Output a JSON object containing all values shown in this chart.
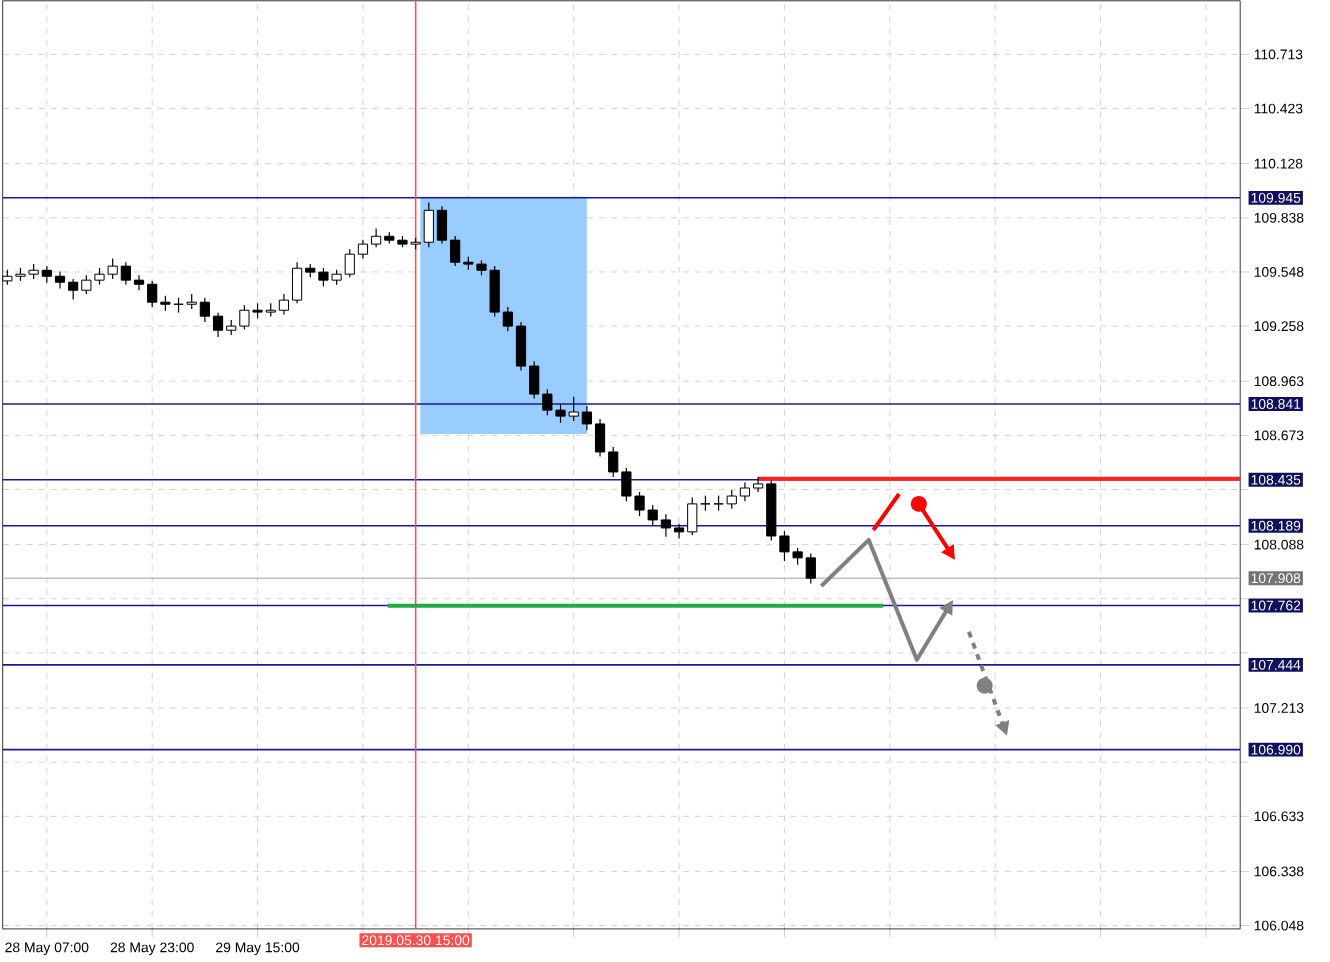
{
  "chart_data": {
    "type": "candlestick",
    "x": [
      "2019-05-28T01:00",
      "2019-05-28T03:00",
      "2019-05-28T05:00",
      "2019-05-28T07:00",
      "2019-05-28T09:00",
      "2019-05-28T11:00",
      "2019-05-28T13:00",
      "2019-05-28T15:00",
      "2019-05-28T17:00",
      "2019-05-28T19:00",
      "2019-05-28T21:00",
      "2019-05-28T23:00",
      "2019-05-29T01:00",
      "2019-05-29T03:00",
      "2019-05-29T05:00",
      "2019-05-29T07:00",
      "2019-05-29T09:00",
      "2019-05-29T11:00",
      "2019-05-29T13:00",
      "2019-05-29T15:00",
      "2019-05-29T17:00",
      "2019-05-29T19:00",
      "2019-05-29T21:00",
      "2019-05-29T23:00",
      "2019-05-30T01:00",
      "2019-05-30T03:00",
      "2019-05-30T05:00",
      "2019-05-30T07:00",
      "2019-05-30T09:00",
      "2019-05-30T11:00",
      "2019-05-30T13:00",
      "2019-05-30T15:00",
      "2019-05-30T17:00",
      "2019-05-30T19:00",
      "2019-05-30T21:00",
      "2019-05-30T23:00",
      "2019-05-31T01:00",
      "2019-05-31T03:00",
      "2019-05-31T05:00",
      "2019-05-31T07:00",
      "2019-05-31T09:00",
      "2019-05-31T11:00",
      "2019-05-31T13:00",
      "2019-05-31T15:00",
      "2019-05-31T17:00",
      "2019-05-31T19:00",
      "2019-05-31T21:00",
      "2019-05-31T23:00",
      "2019-06-01T01:00",
      "2019-06-01T03:00",
      "2019-06-01T05:00",
      "2019-06-01T07:00",
      "2019-06-01T09:00",
      "2019-06-01T11:00",
      "2019-06-01T13:00",
      "2019-06-01T15:00",
      "2019-06-01T17:00",
      "2019-06-01T19:00",
      "2019-06-01T21:00",
      "2019-06-01T23:00",
      "2019-06-02T01:00",
      "2019-06-02T03:00"
    ],
    "ohlc": [
      [
        109.5,
        109.56,
        109.48,
        109.525
      ],
      [
        109.525,
        109.57,
        109.5,
        109.536
      ],
      [
        109.536,
        109.59,
        109.51,
        109.557
      ],
      [
        109.557,
        109.58,
        109.49,
        109.525
      ],
      [
        109.525,
        109.55,
        109.46,
        109.493
      ],
      [
        109.493,
        109.51,
        109.4,
        109.45
      ],
      [
        109.45,
        109.53,
        109.43,
        109.504
      ],
      [
        109.504,
        109.57,
        109.48,
        109.536
      ],
      [
        109.536,
        109.62,
        109.51,
        109.579
      ],
      [
        109.579,
        109.6,
        109.48,
        109.504
      ],
      [
        109.504,
        109.53,
        109.45,
        109.482
      ],
      [
        109.482,
        109.5,
        109.36,
        109.386
      ],
      [
        109.386,
        109.42,
        109.34,
        109.375
      ],
      [
        109.375,
        109.41,
        109.33,
        109.375
      ],
      [
        109.375,
        109.43,
        109.35,
        109.386
      ],
      [
        109.386,
        109.41,
        109.28,
        109.311
      ],
      [
        109.311,
        109.33,
        109.2,
        109.236
      ],
      [
        109.236,
        109.29,
        109.21,
        109.258
      ],
      [
        109.258,
        109.37,
        109.24,
        109.343
      ],
      [
        109.343,
        109.38,
        109.3,
        109.333
      ],
      [
        109.333,
        109.38,
        109.31,
        109.343
      ],
      [
        109.343,
        109.43,
        109.32,
        109.397
      ],
      [
        109.397,
        109.6,
        109.38,
        109.568
      ],
      [
        109.568,
        109.59,
        109.52,
        109.547
      ],
      [
        109.547,
        109.57,
        109.47,
        109.504
      ],
      [
        109.504,
        109.56,
        109.48,
        109.536
      ],
      [
        109.536,
        109.67,
        109.52,
        109.643
      ],
      [
        109.643,
        109.72,
        109.62,
        109.697
      ],
      [
        109.697,
        109.78,
        109.68,
        109.739
      ],
      [
        109.739,
        109.76,
        109.7,
        109.718
      ],
      [
        109.718,
        109.74,
        109.68,
        109.697
      ],
      [
        109.697,
        109.73,
        109.67,
        109.707
      ],
      [
        109.707,
        109.92,
        109.68,
        109.878
      ],
      [
        109.878,
        109.9,
        109.7,
        109.718
      ],
      [
        109.718,
        109.74,
        109.58,
        109.6
      ],
      [
        109.6,
        109.63,
        109.56,
        109.59
      ],
      [
        109.59,
        109.61,
        109.53,
        109.557
      ],
      [
        109.557,
        109.58,
        109.31,
        109.333
      ],
      [
        109.333,
        109.36,
        109.23,
        109.258
      ],
      [
        109.258,
        109.28,
        109.02,
        109.044
      ],
      [
        109.044,
        109.07,
        108.87,
        108.894
      ],
      [
        108.894,
        108.92,
        108.78,
        108.808
      ],
      [
        108.808,
        108.84,
        108.74,
        108.776
      ],
      [
        108.776,
        108.88,
        108.75,
        108.798
      ],
      [
        108.798,
        108.83,
        108.7,
        108.734
      ],
      [
        108.734,
        108.76,
        108.56,
        108.584
      ],
      [
        108.584,
        108.61,
        108.45,
        108.477
      ],
      [
        108.477,
        108.5,
        108.32,
        108.348
      ],
      [
        108.348,
        108.37,
        108.24,
        108.273
      ],
      [
        108.273,
        108.3,
        108.19,
        108.22
      ],
      [
        108.22,
        108.25,
        108.13,
        108.177
      ],
      [
        108.177,
        108.2,
        108.12,
        108.156
      ],
      [
        108.156,
        108.34,
        108.14,
        108.306
      ],
      [
        108.306,
        108.35,
        108.27,
        108.306
      ],
      [
        108.306,
        108.35,
        108.27,
        108.306
      ],
      [
        108.306,
        108.38,
        108.28,
        108.348
      ],
      [
        108.348,
        108.42,
        108.32,
        108.391
      ],
      [
        108.391,
        108.45,
        108.37,
        108.413
      ],
      [
        108.413,
        108.43,
        108.11,
        108.134
      ],
      [
        108.134,
        108.16,
        108.0,
        108.049
      ],
      [
        108.049,
        108.07,
        107.98,
        108.017
      ],
      [
        108.017,
        108.04,
        107.88,
        107.908
      ]
    ],
    "series": [
      {
        "type": "bar",
        "color": "#99ccff",
        "x": [
          "2019-05-31T04:21"
        ],
        "values": [
          1.27
        ],
        "base": [
          108.68
        ]
      },
      {
        "type": "line",
        "color": "#ff2020",
        "x": [
          "2019-06-01T19:00",
          "2019-06-04T20:12"
        ],
        "values": [
          108.44,
          108.44
        ]
      },
      {
        "type": "line",
        "color": "#22aa44",
        "x": [
          "2019-05-30T10:48",
          "2019-06-02T14:00"
        ],
        "values": [
          107.76,
          107.76
        ]
      }
    ],
    "xlim": [
      "2019-05-28T00:18",
      "2019-06-04T20:12"
    ],
    "ylim": [
      106.03,
      111.0
    ],
    "xticks": [
      {
        "value": "2019-05-28T07:00",
        "label": "28 May 07:00"
      },
      {
        "value": "2019-05-28T23:00",
        "label": "28 May 23:00"
      },
      {
        "value": "2019-05-29T15:00",
        "label": "29 May 15:00"
      },
      {
        "value": "2019-05-30T07:00",
        "label": null
      },
      {
        "value": "2019-05-30T23:00",
        "label": null
      },
      {
        "value": "2019-05-31T15:00",
        "label": null
      },
      {
        "value": "2019-06-01T07:00",
        "label": null
      },
      {
        "value": "2019-06-01T23:00",
        "label": null
      },
      {
        "value": "2019-06-02T15:00",
        "label": null
      },
      {
        "value": "2019-06-03T07:00",
        "label": null
      },
      {
        "value": "2019-06-03T23:00",
        "label": null
      },
      {
        "value": "2019-06-04T15:00",
        "label": null
      }
    ],
    "yticks": [
      110.713,
      110.423,
      110.128,
      109.838,
      109.548,
      109.258,
      108.963,
      108.673,
      {
        "value": 108.383,
        "label": null
      },
      108.088,
      {
        "value": 107.798,
        "label": null
      },
      {
        "value": 107.508,
        "label": null
      },
      107.213,
      {
        "value": 106.923,
        "label": null
      },
      106.633,
      106.338,
      106.048
    ],
    "ref_lines": [
      {
        "axis": "y",
        "value": 109.945,
        "label": "109.945",
        "color": "#1a1a99"
      },
      {
        "axis": "y",
        "value": 108.841,
        "label": "108.841",
        "color": "#1a1a99"
      },
      {
        "axis": "y",
        "value": 108.435,
        "label": "108.435",
        "color": "#1a1a99"
      },
      {
        "axis": "y",
        "value": 108.189,
        "label": "108.189",
        "color": "#1a1a99"
      },
      {
        "axis": "y",
        "value": 107.908,
        "label": "107.908",
        "color": "#c0c0c0"
      },
      {
        "axis": "y",
        "value": 107.762,
        "label": "107.762",
        "color": "#1a1a99"
      },
      {
        "axis": "y",
        "value": 107.444,
        "label": "107.444",
        "color": "#1a1a99"
      },
      {
        "axis": "y",
        "value": 106.99,
        "label": "106.990",
        "color": "#1a1a99"
      },
      {
        "axis": "x",
        "value": "2019-05-30T15:00",
        "label": "2019.05.30 15:00",
        "color": "#ff5050"
      }
    ],
    "grid": true
  }
}
